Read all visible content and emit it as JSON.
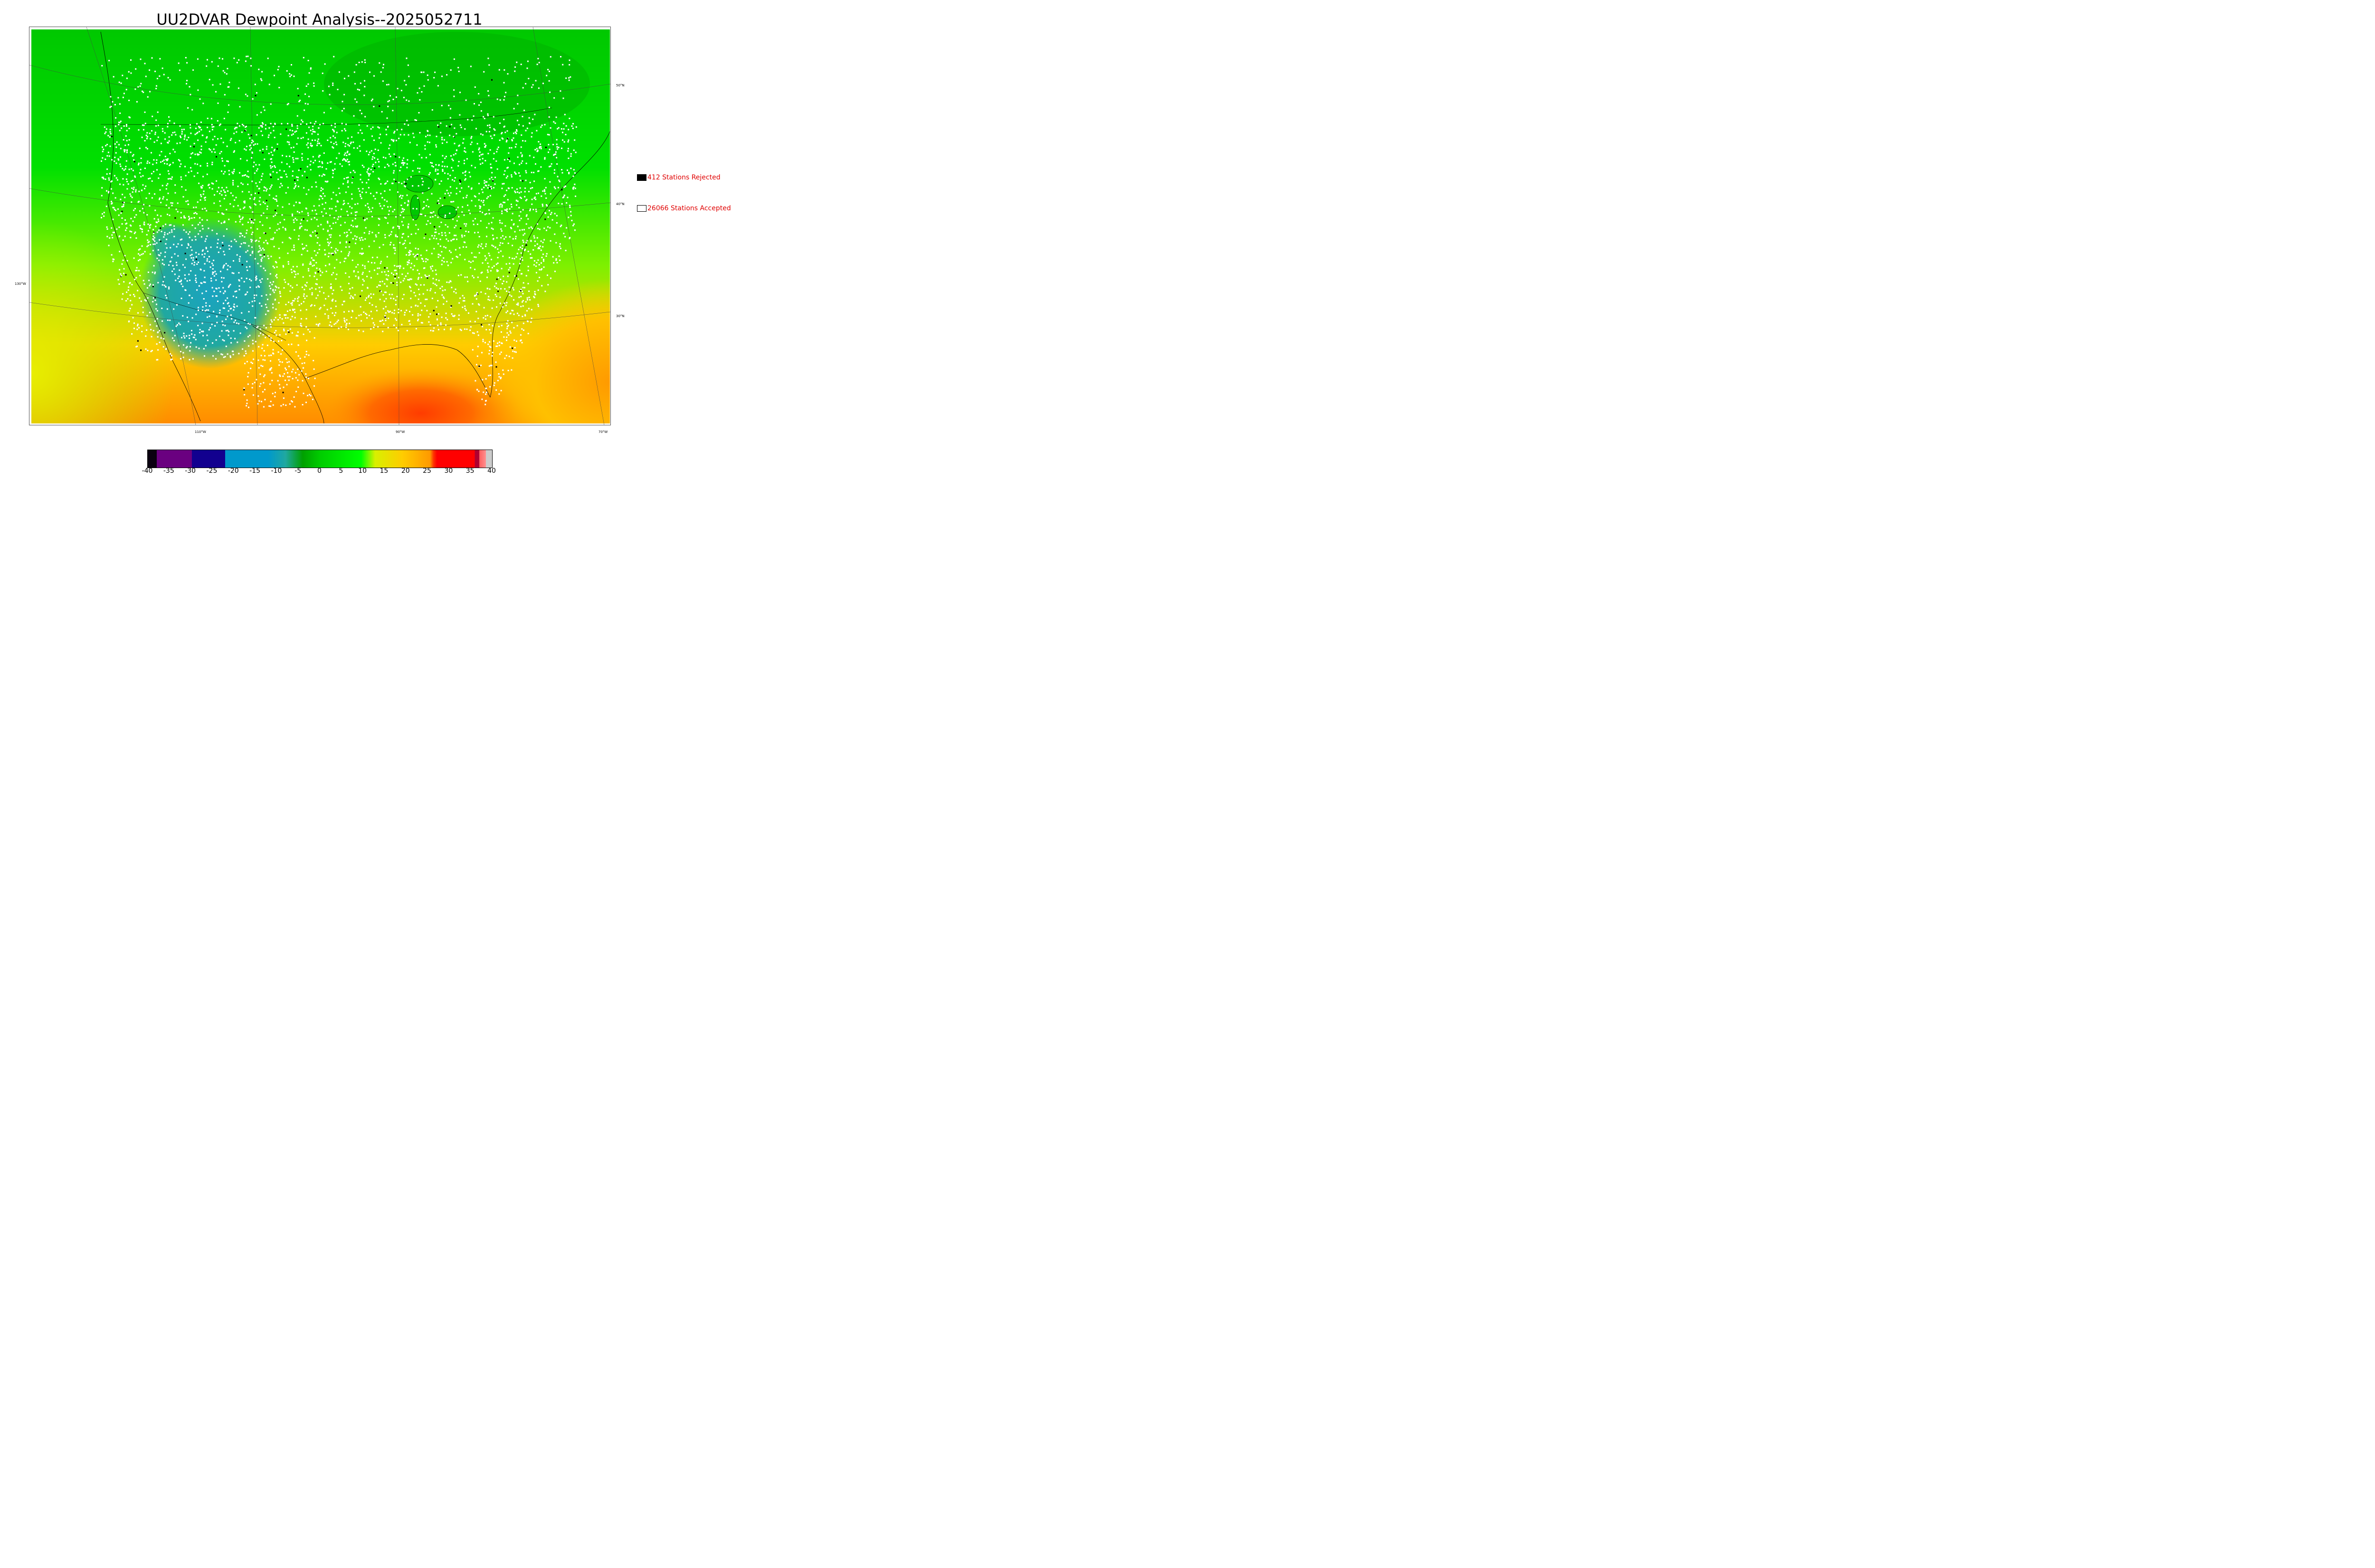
{
  "title": "UU2DVAR Dewpoint Analysis--2025052711",
  "lat_labels": [
    "50°N",
    "40°N",
    "30°N"
  ],
  "lon_labels": [
    "130°W",
    "110°W",
    "90°W",
    "70°W"
  ],
  "legend": {
    "rejected": {
      "count_text": "412 Stations Rejected",
      "color": "#000000"
    },
    "accepted": {
      "count_text": "26066 Stations Accepted",
      "color": "#ffffff"
    }
  },
  "colorbar": {
    "ticks": [
      "-40",
      "-35",
      "-30",
      "-25",
      "-20",
      "-15",
      "-10",
      "-5",
      "0",
      "5",
      "10",
      "15",
      "20",
      "25",
      "30",
      "35",
      "40"
    ],
    "min": -40,
    "max": 40
  },
  "colors": {
    "cold": "#1a0a2a",
    "purple": "#6a0080",
    "navy": "#12008f",
    "blue": "#0099cc",
    "green": "#00aa00",
    "light_green": "#00ee00",
    "yellow": "#e6f000",
    "orange": "#ff9900",
    "red": "#ff2200",
    "label_red": "#e00000"
  }
}
